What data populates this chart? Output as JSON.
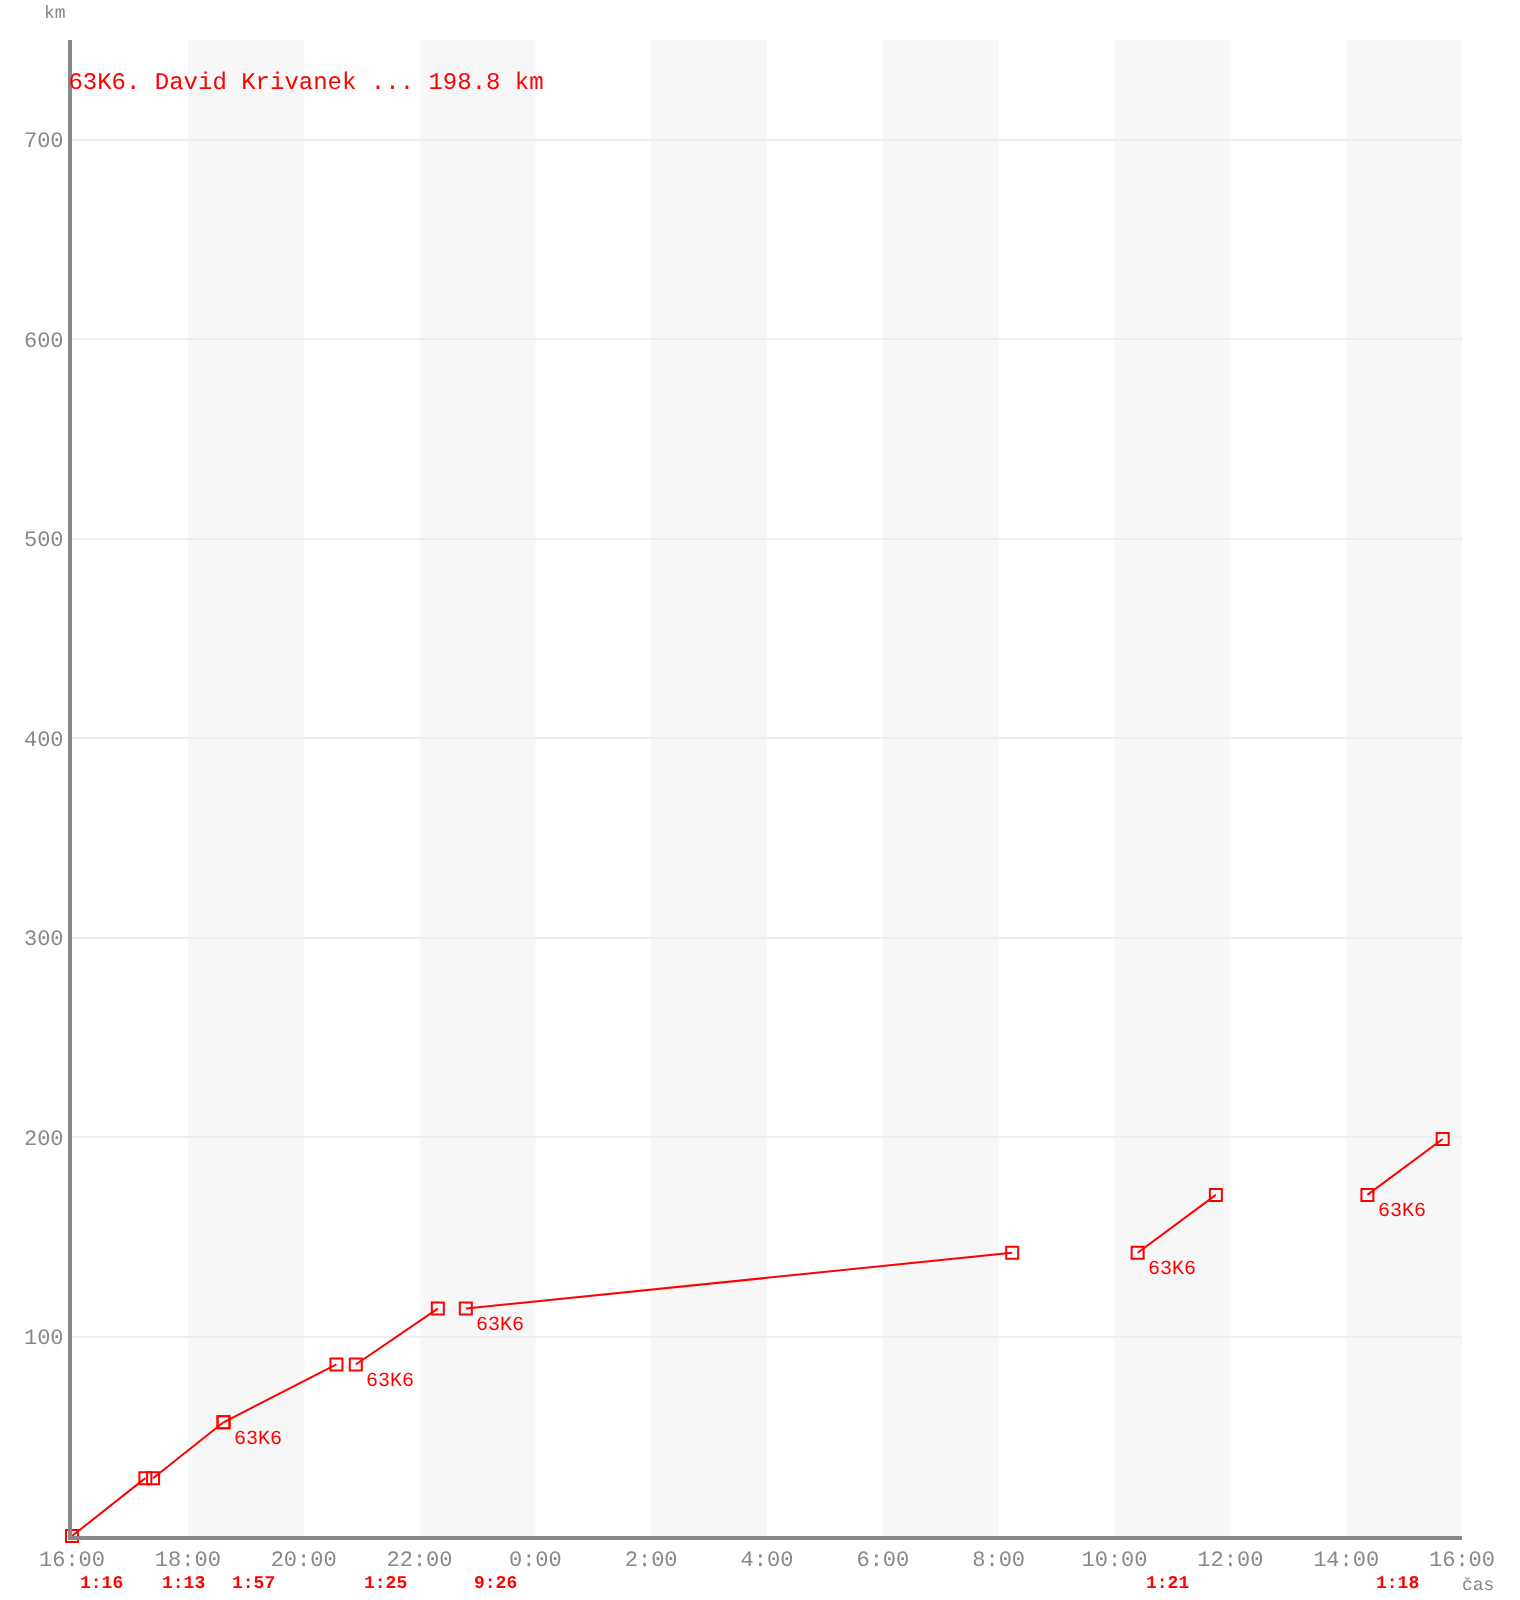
{
  "chart_data": {
    "type": "line",
    "title": "63K6. David Krivanek ... 198.8 km",
    "xlabel": "čas",
    "ylabel": "km",
    "series": [
      {
        "color": "#ff0000",
        "x": [
          "2000-01-01T16:00",
          "2000-01-01T17:16"
        ],
        "values": [
          0,
          29
        ]
      },
      {
        "color": "#ff0000",
        "x": [
          "2000-01-01T17:24",
          "2000-01-01T18:37"
        ],
        "values": [
          29,
          57
        ]
      },
      {
        "color": "#ff0000",
        "x": [
          "2000-01-01T18:37",
          "2000-01-01T20:34"
        ],
        "values": [
          57,
          86
        ]
      },
      {
        "color": "#ff0000",
        "x": [
          "2000-01-01T20:54",
          "2000-01-01T22:19"
        ],
        "values": [
          86,
          114
        ]
      },
      {
        "color": "#ff0000",
        "x": [
          "2000-01-01T22:48",
          "2000-01-02T08:14"
        ],
        "values": [
          114,
          142
        ]
      },
      {
        "color": "#ff0000",
        "x": [
          "2000-01-02T10:24",
          "2000-01-02T11:45"
        ],
        "values": [
          142,
          171
        ]
      },
      {
        "color": "#ff0000",
        "x": [
          "2000-01-02T14:22",
          "2000-01-02T15:40"
        ],
        "values": [
          171,
          199
        ]
      }
    ],
    "xlim": [
      "2000-01-01T16:00",
      "2000-01-02T16:00"
    ],
    "xticks": [
      {
        "value": "2000-01-01T16:00",
        "label": "16:00"
      },
      {
        "value": "2000-01-01T18:00",
        "label": "18:00"
      },
      {
        "value": "2000-01-01T20:00",
        "label": "20:00"
      },
      {
        "value": "2000-01-01T22:00",
        "label": "22:00"
      },
      {
        "value": "2000-01-02T00:00",
        "label": "0:00"
      },
      {
        "value": "2000-01-02T02:00",
        "label": "2:00"
      },
      {
        "value": "2000-01-02T04:00",
        "label": "4:00"
      },
      {
        "value": "2000-01-02T06:00",
        "label": "6:00"
      },
      {
        "value": "2000-01-02T08:00",
        "label": "8:00"
      },
      {
        "value": "2000-01-02T10:00",
        "label": "10:00"
      },
      {
        "value": "2000-01-02T12:00",
        "label": "12:00"
      },
      {
        "value": "2000-01-02T14:00",
        "label": "14:00"
      },
      {
        "value": "2000-01-02T16:00",
        "label": "16:00"
      }
    ],
    "ylim": [
      0,
      750
    ],
    "yticks": [
      100,
      200,
      300,
      400,
      500,
      600,
      700
    ],
    "grid": "y",
    "marker": "square",
    "line_style": "solid",
    "bands": [
      {
        "axis": "x",
        "from": "2000-01-01T18:00",
        "to": "2000-01-01T20:00",
        "color": "#f7f7f7"
      },
      {
        "axis": "x",
        "from": "2000-01-01T22:00",
        "to": "2000-01-02T00:00",
        "color": "#f7f7f7"
      },
      {
        "axis": "x",
        "from": "2000-01-02T02:00",
        "to": "2000-01-02T04:00",
        "color": "#f7f7f7"
      },
      {
        "axis": "x",
        "from": "2000-01-02T06:00",
        "to": "2000-01-02T08:00",
        "color": "#f7f7f7"
      },
      {
        "axis": "x",
        "from": "2000-01-02T10:00",
        "to": "2000-01-02T12:00",
        "color": "#f7f7f7"
      },
      {
        "axis": "x",
        "from": "2000-01-02T14:00",
        "to": "2000-01-02T16:00",
        "color": "#f7f7f7"
      }
    ],
    "annotations": [
      {
        "text": "63K6",
        "x": "2000-01-01T18:37",
        "y": 57
      },
      {
        "text": "63K6",
        "x": "2000-01-01T20:54",
        "y": 86
      },
      {
        "text": "63K6",
        "x": "2000-01-01T22:48",
        "y": 114
      },
      {
        "text": "63K6",
        "x": "2000-01-02T10:24",
        "y": 142
      },
      {
        "text": "63K6",
        "x": "2000-01-02T14:22",
        "y": 171
      },
      "1:16",
      "1:13",
      "1:57",
      "1:25",
      "9:26",
      "1:21",
      "1:18"
    ]
  }
}
